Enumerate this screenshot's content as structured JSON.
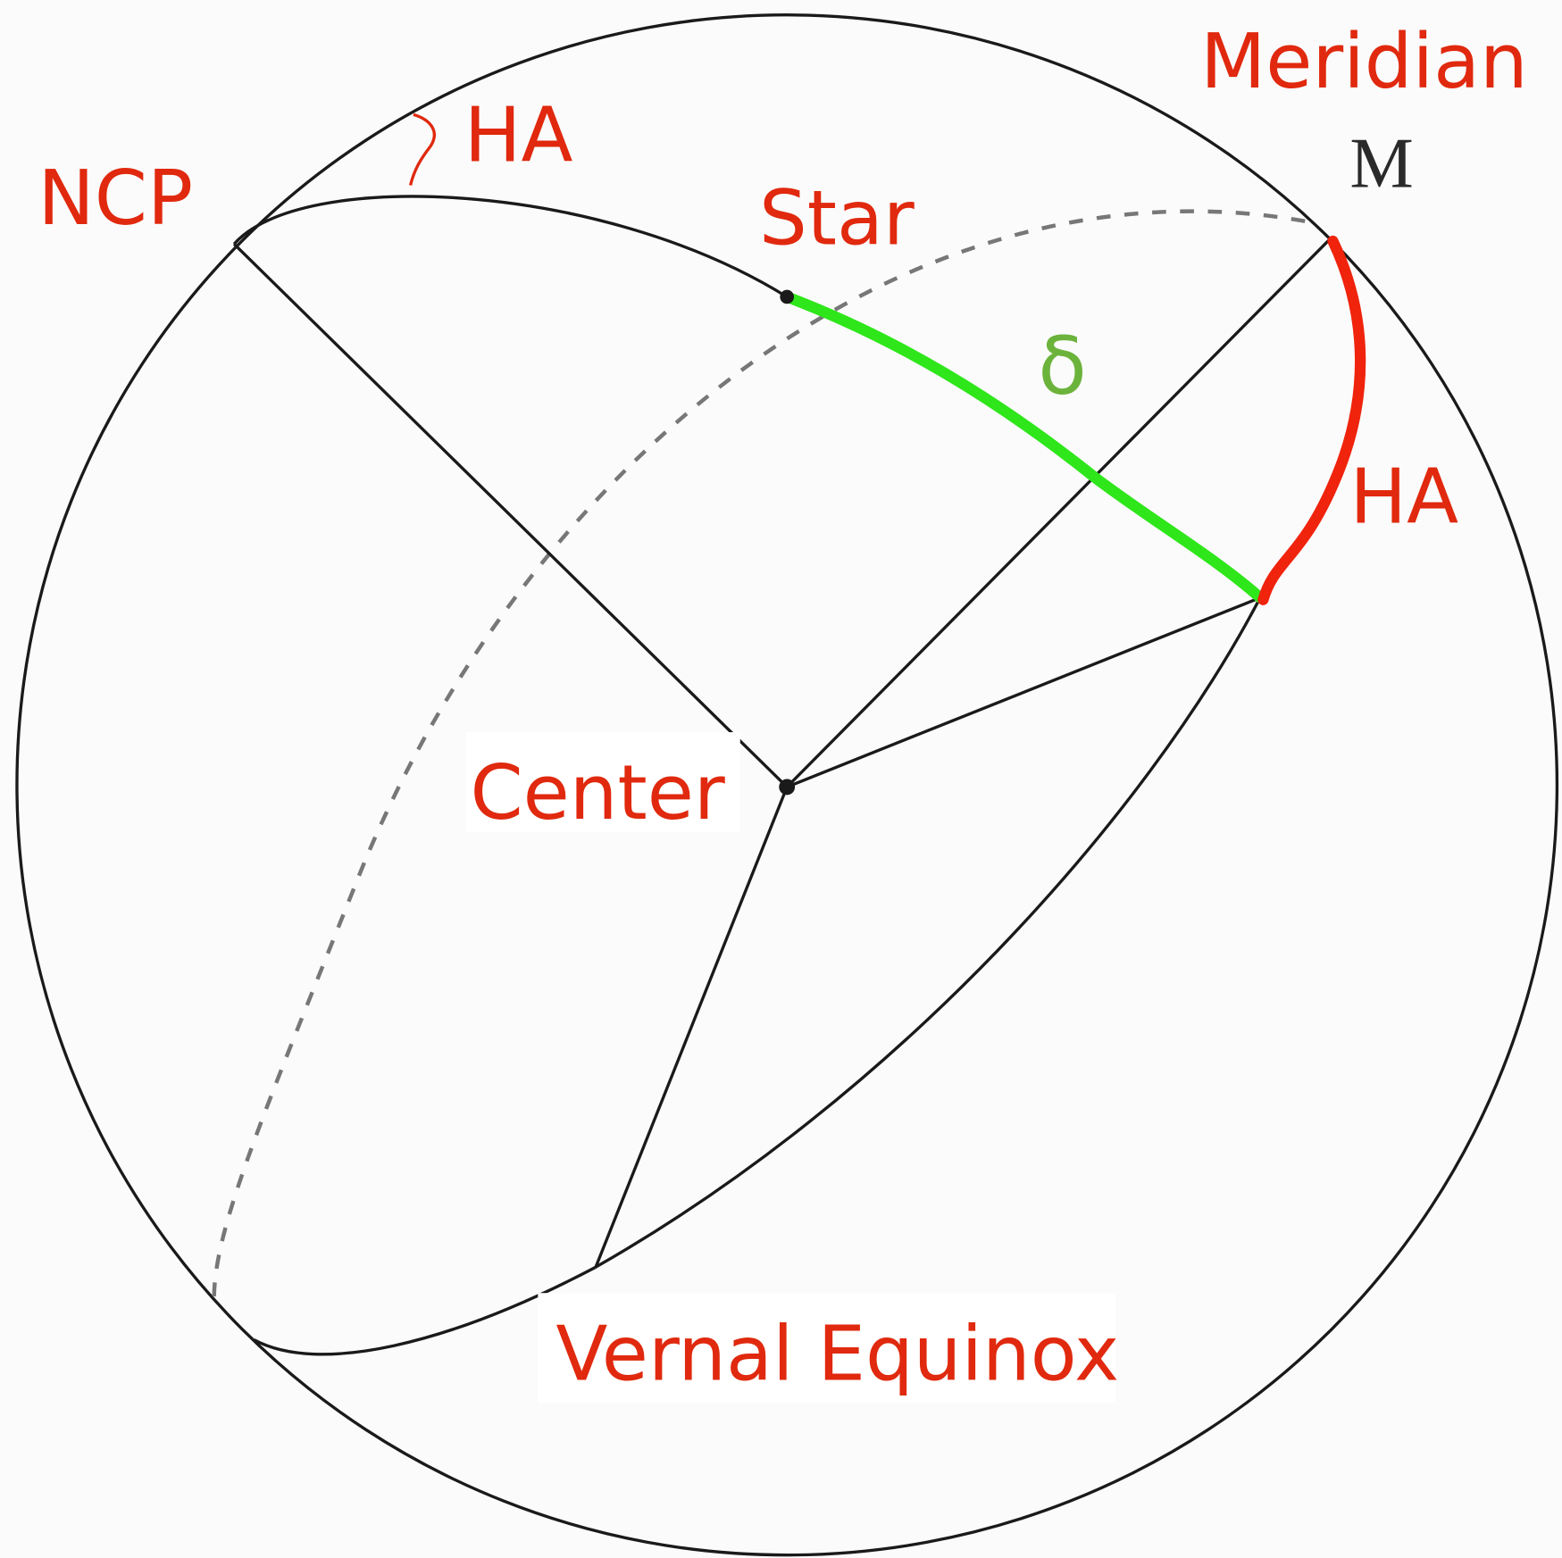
{
  "labels": {
    "meridian": "Meridian",
    "meridian_point": "M",
    "ha_top": "HA",
    "ncp": "NCP",
    "star": "Star",
    "declination": "δ",
    "ha_right": "HA",
    "center": "Center",
    "vernal_equinox": "Vernal Equinox"
  }
}
